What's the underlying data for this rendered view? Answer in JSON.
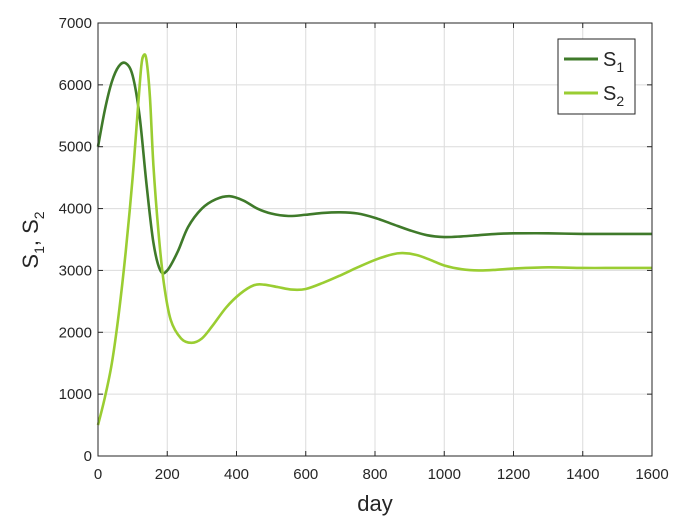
{
  "chart_data": {
    "type": "line",
    "xlabel": "day",
    "ylabel": {
      "main": "S",
      "sub1": "1",
      "sep": ", ",
      "sub2": "2"
    },
    "xlim": [
      0,
      1600
    ],
    "ylim": [
      0,
      7000
    ],
    "xticks": [
      "0",
      "200",
      "400",
      "600",
      "800",
      "1000",
      "1200",
      "1400",
      "1600"
    ],
    "yticks": [
      "0",
      "1000",
      "2000",
      "3000",
      "4000",
      "5000",
      "6000",
      "7000"
    ],
    "grid": true,
    "legend_position": "top-right",
    "series": [
      {
        "name": "S",
        "subscript": "1",
        "color": "#3f7a2a",
        "points": [
          [
            0,
            5000
          ],
          [
            20,
            5600
          ],
          [
            40,
            6050
          ],
          [
            60,
            6300
          ],
          [
            80,
            6350
          ],
          [
            100,
            6150
          ],
          [
            120,
            5500
          ],
          [
            140,
            4400
          ],
          [
            160,
            3450
          ],
          [
            180,
            3000
          ],
          [
            200,
            3000
          ],
          [
            230,
            3300
          ],
          [
            260,
            3700
          ],
          [
            300,
            4000
          ],
          [
            340,
            4150
          ],
          [
            380,
            4200
          ],
          [
            420,
            4130
          ],
          [
            460,
            4000
          ],
          [
            500,
            3920
          ],
          [
            550,
            3880
          ],
          [
            600,
            3900
          ],
          [
            650,
            3930
          ],
          [
            700,
            3940
          ],
          [
            750,
            3920
          ],
          [
            800,
            3850
          ],
          [
            850,
            3750
          ],
          [
            900,
            3650
          ],
          [
            950,
            3570
          ],
          [
            1000,
            3540
          ],
          [
            1050,
            3550
          ],
          [
            1100,
            3570
          ],
          [
            1150,
            3590
          ],
          [
            1200,
            3600
          ],
          [
            1300,
            3600
          ],
          [
            1400,
            3590
          ],
          [
            1500,
            3590
          ],
          [
            1600,
            3590
          ]
        ]
      },
      {
        "name": "S",
        "subscript": "2",
        "color": "#9acd32",
        "points": [
          [
            0,
            500
          ],
          [
            20,
            950
          ],
          [
            40,
            1500
          ],
          [
            60,
            2300
          ],
          [
            80,
            3300
          ],
          [
            100,
            4500
          ],
          [
            115,
            5600
          ],
          [
            125,
            6300
          ],
          [
            132,
            6480
          ],
          [
            140,
            6400
          ],
          [
            150,
            5800
          ],
          [
            160,
            4700
          ],
          [
            175,
            3600
          ],
          [
            190,
            2800
          ],
          [
            210,
            2200
          ],
          [
            240,
            1900
          ],
          [
            270,
            1830
          ],
          [
            300,
            1900
          ],
          [
            330,
            2100
          ],
          [
            370,
            2400
          ],
          [
            410,
            2620
          ],
          [
            450,
            2760
          ],
          [
            480,
            2770
          ],
          [
            520,
            2730
          ],
          [
            560,
            2690
          ],
          [
            600,
            2700
          ],
          [
            650,
            2800
          ],
          [
            700,
            2920
          ],
          [
            750,
            3050
          ],
          [
            800,
            3170
          ],
          [
            850,
            3260
          ],
          [
            880,
            3280
          ],
          [
            920,
            3250
          ],
          [
            960,
            3170
          ],
          [
            1000,
            3080
          ],
          [
            1050,
            3020
          ],
          [
            1100,
            3000
          ],
          [
            1150,
            3010
          ],
          [
            1200,
            3030
          ],
          [
            1300,
            3050
          ],
          [
            1400,
            3040
          ],
          [
            1500,
            3040
          ],
          [
            1600,
            3040
          ]
        ]
      }
    ]
  }
}
